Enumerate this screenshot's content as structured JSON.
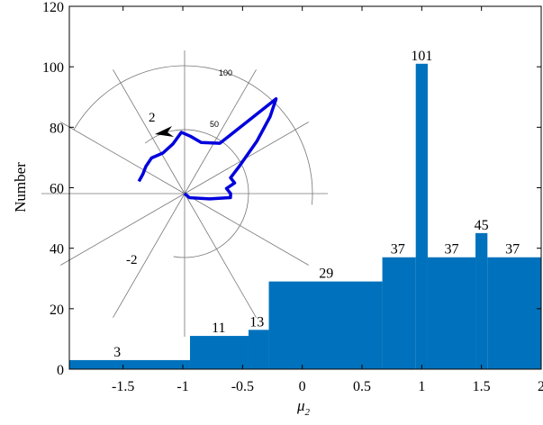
{
  "chart_data": {
    "type": "bar",
    "xlabel": "μ",
    "xlabel_sub": "2",
    "ylabel": "Number",
    "xlim": [
      -1.95,
      2
    ],
    "ylim": [
      0,
      120
    ],
    "xticks": [
      {
        "v": -1.5,
        "label": "-1.5"
      },
      {
        "v": -1,
        "label": "-1"
      },
      {
        "v": -0.5,
        "label": "-0.5"
      },
      {
        "v": 0,
        "label": "0"
      },
      {
        "v": 0.5,
        "label": "0.5"
      },
      {
        "v": 1,
        "label": "1"
      },
      {
        "v": 1.5,
        "label": "1.5"
      },
      {
        "v": 2,
        "label": "2"
      }
    ],
    "yticks": [
      {
        "v": 0,
        "label": "0"
      },
      {
        "v": 20,
        "label": "20"
      },
      {
        "v": 40,
        "label": "40"
      },
      {
        "v": 60,
        "label": "60"
      },
      {
        "v": 80,
        "label": "80"
      },
      {
        "v": 100,
        "label": "100"
      },
      {
        "v": 120,
        "label": "120"
      }
    ],
    "color": "#0072bd",
    "bars": [
      {
        "x0": -1.95,
        "x1": -0.94,
        "value": 3,
        "label": "3",
        "label_x": -1.55
      },
      {
        "x0": -0.94,
        "x1": -0.45,
        "value": 11,
        "label": "11",
        "label_x": -0.7
      },
      {
        "x0": -0.45,
        "x1": -0.28,
        "value": 13,
        "label": "13",
        "label_x": -0.38
      },
      {
        "x0": -0.28,
        "x1": 0.67,
        "value": 29,
        "label": "29",
        "label_x": 0.2
      },
      {
        "x0": 0.67,
        "x1": 0.95,
        "value": 37,
        "label": "37",
        "label_x": 0.8
      },
      {
        "x0": 0.95,
        "x1": 1.05,
        "value": 101,
        "label": "101",
        "label_x": 1.0
      },
      {
        "x0": 1.05,
        "x1": 1.45,
        "value": 37,
        "label": "37",
        "label_x": 1.25
      },
      {
        "x0": 1.45,
        "x1": 1.55,
        "value": 45,
        "label": "45",
        "label_x": 1.5
      },
      {
        "x0": 1.55,
        "x1": 2.0,
        "value": 37,
        "label": "37",
        "label_x": 1.76
      }
    ],
    "inset": {
      "type": "polar",
      "rmax": 100,
      "ring_labels": [
        "50",
        "100"
      ],
      "angle_labels": [
        "2",
        "-2"
      ],
      "series_color": "#0000dd",
      "series": [
        {
          "angle_deg": 165,
          "r": 37
        },
        {
          "angle_deg": 155,
          "r": 36
        },
        {
          "angle_deg": 145,
          "r": 37
        },
        {
          "angle_deg": 133,
          "r": 38
        },
        {
          "angle_deg": 118,
          "r": 36
        },
        {
          "angle_deg": 103,
          "r": 40
        },
        {
          "angle_deg": 93,
          "r": 48
        },
        {
          "angle_deg": 84,
          "r": 45
        },
        {
          "angle_deg": 72,
          "r": 42
        },
        {
          "angle_deg": 55,
          "r": 48
        },
        {
          "angle_deg": 46,
          "r": 103
        },
        {
          "angle_deg": 42,
          "r": 90
        },
        {
          "angle_deg": 36,
          "r": 70
        },
        {
          "angle_deg": 26,
          "r": 47
        },
        {
          "angle_deg": 19,
          "r": 38
        },
        {
          "angle_deg": 12,
          "r": 40
        },
        {
          "angle_deg": 7,
          "r": 33
        },
        {
          "angle_deg": 0,
          "r": 36
        },
        {
          "angle_deg": -5,
          "r": 36
        },
        {
          "angle_deg": -12,
          "r": 20
        },
        {
          "angle_deg": -40,
          "r": 5
        },
        {
          "angle_deg": 180,
          "r": 0
        }
      ]
    }
  }
}
